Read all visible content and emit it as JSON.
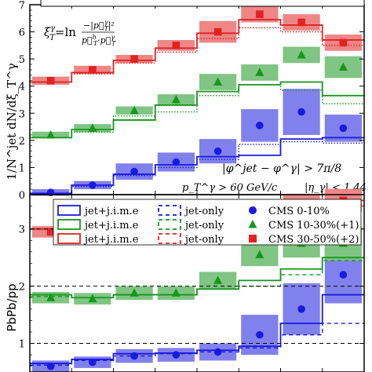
{
  "chart_data": [
    {
      "type": "line",
      "ylabel": "1/N^jet dN/dξ_T^γ",
      "ylim": [
        0,
        7
      ],
      "yticks": [
        "0",
        "1",
        "2",
        "3",
        "4",
        "5",
        "6",
        "7"
      ],
      "xbins": [
        0.0,
        0.5,
        1.0,
        1.5,
        2.0,
        2.5,
        3.0,
        3.5,
        4.0
      ],
      "formula": {
        "lhs": "ξ",
        "lhs_sup": "γ",
        "lhs_sub": "T",
        "eq": "=ln",
        "num": "−|p⃗",
        "num_sub": "T",
        "num_sup": "γ",
        "num_end": "|²",
        "den": "p⃗",
        "den_sup": "h",
        "den_sub": "T",
        "den_mid": "·",
        "den_end": "p⃗",
        "den_sup2": "γ",
        "den_sub2": "T"
      },
      "cuts": {
        "line1": "|φ^jet − φ^γ| > 7π/8",
        "line2_a": "p_T^γ > 60 GeV/c",
        "line2_b": "|η_γ| < 1.44"
      },
      "series": [
        {
          "name": "CMS 0-10%",
          "group": "blue",
          "color": "#1a1adf",
          "model": [
            0.05,
            0.35,
            0.75,
            1.1,
            1.4,
            1.45,
            2.05,
            2.1
          ],
          "jetonly": [
            0.05,
            0.3,
            0.7,
            1.0,
            1.3,
            1.85,
            1.95,
            1.9
          ],
          "points": [
            0.08,
            0.35,
            0.85,
            1.2,
            1.6,
            2.55,
            3.05,
            2.45
          ],
          "band": [
            0.12,
            0.15,
            0.3,
            0.35,
            0.45,
            0.6,
            0.85,
            0.5
          ]
        },
        {
          "name": "CMS 10-30%(+1)",
          "group": "green",
          "color": "#18961e",
          "model": [
            2.1,
            2.4,
            2.75,
            3.3,
            3.8,
            4.05,
            4.15,
            3.65
          ],
          "jetonly": [
            2.1,
            2.3,
            2.9,
            3.05,
            3.65,
            4.05,
            3.85,
            3.35
          ],
          "points": [
            2.2,
            2.45,
            3.1,
            3.5,
            4.15,
            4.5,
            5.15,
            4.7
          ],
          "band": [
            0.12,
            0.15,
            0.15,
            0.2,
            0.3,
            0.3,
            0.3,
            0.4
          ]
        },
        {
          "name": "CMS 30-50%(+2)",
          "group": "red",
          "color": "#e02323",
          "model": [
            4.15,
            4.5,
            4.95,
            5.4,
            5.95,
            6.45,
            6.25,
            5.7
          ],
          "jetonly": [
            4.15,
            4.45,
            4.85,
            5.25,
            5.75,
            6.15,
            6.0,
            5.5
          ],
          "points": [
            4.2,
            4.6,
            5.0,
            5.5,
            6.0,
            6.65,
            6.35,
            5.6
          ],
          "band": [
            0.15,
            0.15,
            0.15,
            0.2,
            0.4,
            0.3,
            0.3,
            0.3
          ]
        }
      ]
    },
    {
      "type": "line",
      "ylabel": "PbPb/pp",
      "ylim": [
        0.5,
        3.6
      ],
      "yticks": [
        "1",
        "2",
        "3"
      ],
      "xbins": [
        0.0,
        0.5,
        1.0,
        1.5,
        2.0,
        2.5,
        3.0,
        3.5,
        4.0
      ],
      "legend": {
        "placement": "top",
        "model_label": "jet+j.i.m.e",
        "jetonly_label": "jet-only"
      },
      "series": [
        {
          "name": "CMS 0-10%",
          "group": "blue",
          "color": "#1a1adf",
          "model": [
            0.65,
            0.72,
            0.82,
            0.83,
            0.88,
            0.95,
            1.35,
            1.85
          ],
          "jetonly": [
            0.62,
            0.7,
            0.78,
            0.82,
            0.85,
            0.92,
            1.15,
            1.35
          ],
          "points": [
            0.6,
            0.67,
            0.78,
            0.8,
            0.85,
            1.15,
            1.6,
            2.2
          ],
          "band": [
            0.1,
            0.1,
            0.12,
            0.12,
            0.15,
            0.35,
            0.45,
            0.5
          ]
        },
        {
          "name": "CMS 10-30%(+1)",
          "group": "green",
          "color": "#18961e",
          "model": [
            1.85,
            1.8,
            1.85,
            1.85,
            1.95,
            2.1,
            2.3,
            2.5
          ],
          "jetonly": [
            1.82,
            1.8,
            1.85,
            1.85,
            1.95,
            2.0,
            2.2,
            2.45
          ],
          "points": [
            1.8,
            1.78,
            1.88,
            1.88,
            2.1,
            2.55,
            2.75,
            2.75
          ],
          "band": [
            0.1,
            0.1,
            0.12,
            0.12,
            0.15,
            0.2,
            0.25,
            0.3
          ]
        },
        {
          "name": "CMS 30-50%(+2)",
          "group": "red",
          "color": "#e02323",
          "model": [
            3.0,
            3.0,
            3.0,
            3.05,
            3.05,
            3.2,
            3.35,
            3.5
          ],
          "jetonly": [
            3.0,
            3.0,
            3.0,
            3.0,
            3.0,
            3.05,
            3.2,
            3.4
          ],
          "points": [
            2.95,
            3.0,
            2.95,
            3.0,
            3.0,
            3.3,
            3.45,
            3.5
          ],
          "band": [
            0.1,
            0.1,
            0.1,
            0.1,
            0.12,
            0.15,
            0.15,
            0.2
          ]
        }
      ]
    }
  ]
}
